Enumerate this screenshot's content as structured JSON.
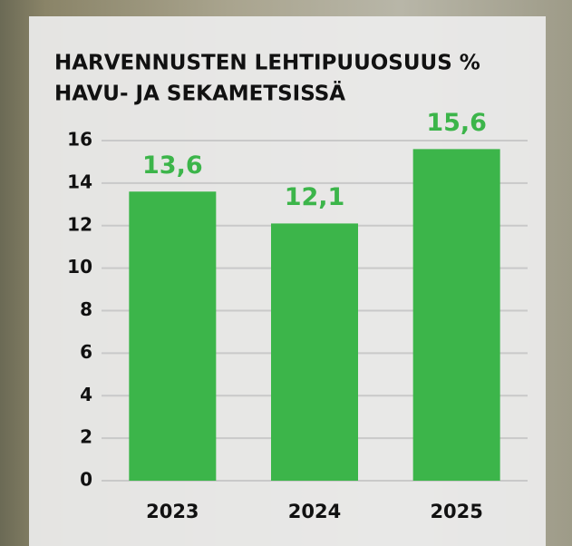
{
  "chart_data": {
    "type": "bar",
    "title": [
      "HARVENNUSTEN LEHTIPUUOSUUS %",
      "HAVU- JA SEKAMETSISSÄ"
    ],
    "categories": [
      "2023",
      "2024",
      "2025"
    ],
    "values": [
      13.6,
      12.1,
      15.6
    ],
    "value_labels": [
      "13,6",
      "12,1",
      "15,6"
    ],
    "color": "#3cb54a",
    "ylim": [
      0,
      16
    ],
    "yticks": [
      0,
      2,
      4,
      6,
      8,
      10,
      12,
      14,
      16
    ],
    "grid": true
  }
}
